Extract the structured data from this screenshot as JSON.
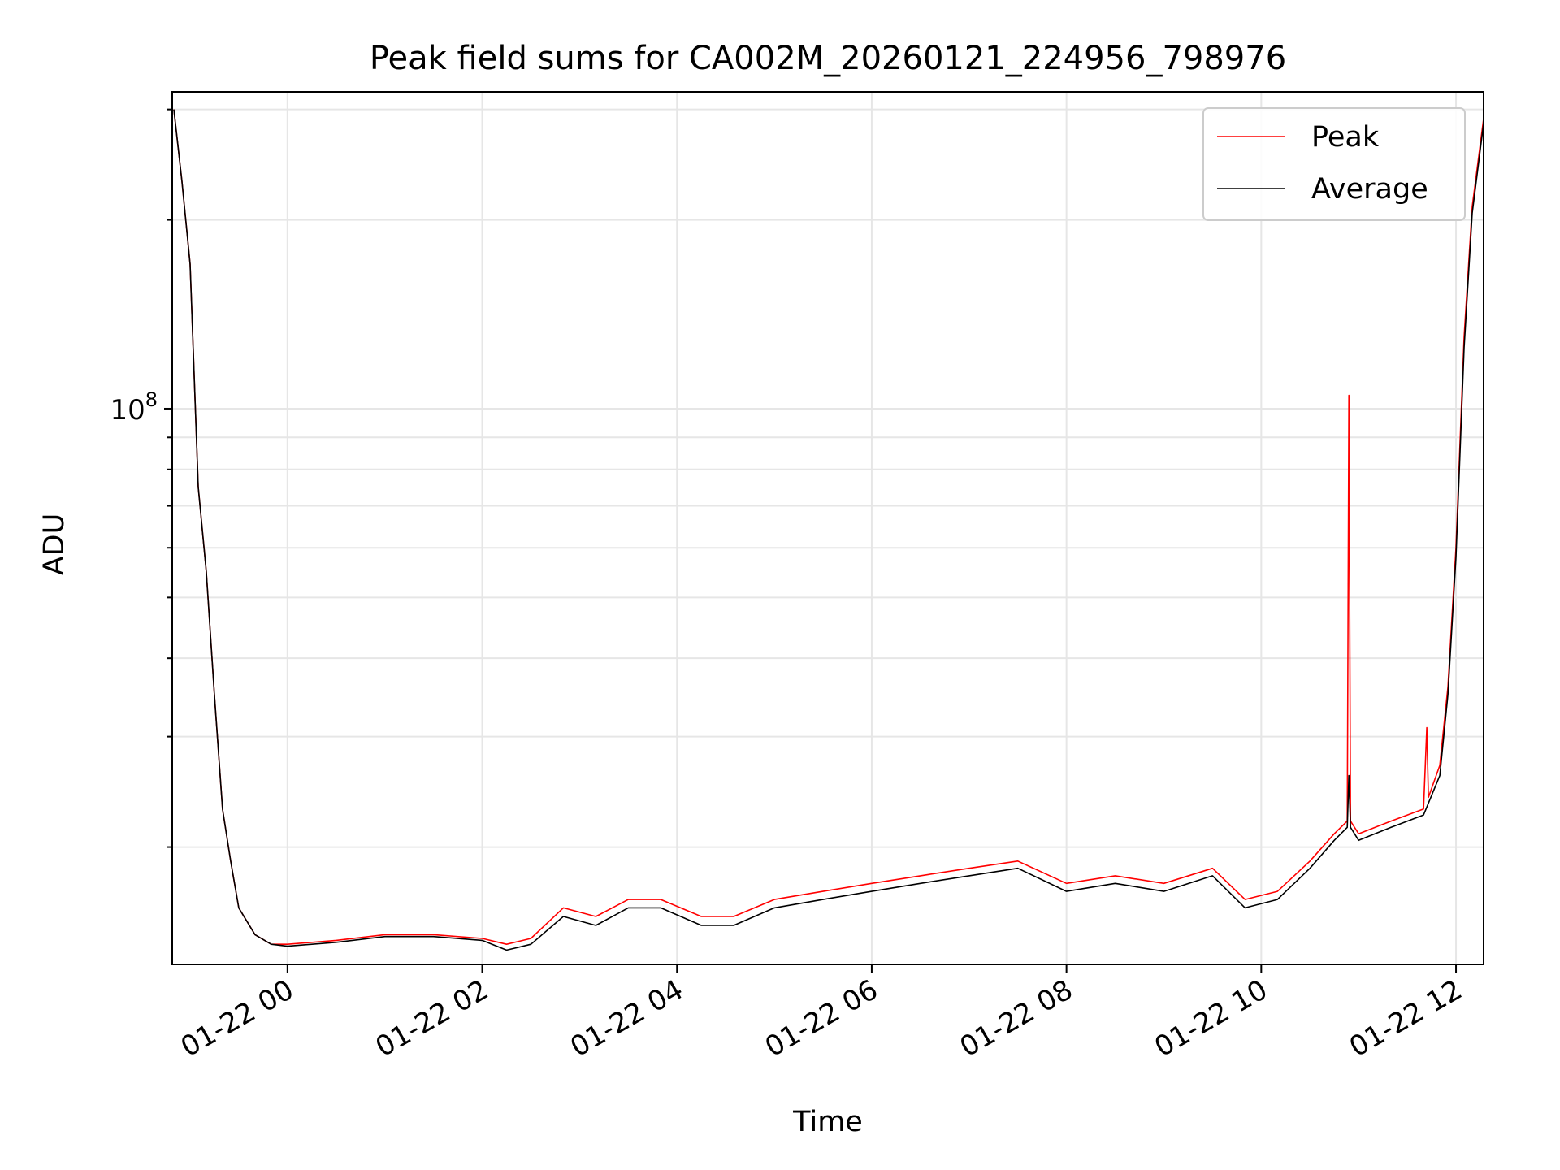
{
  "chart_data": {
    "type": "line",
    "title": "Peak field sums for CA002M_20260121_224956_798976",
    "xlabel": "Time",
    "ylabel": "ADU",
    "yscale": "log",
    "xlim": [
      "2026-01-21 22:49",
      "2026-01-22 12:17"
    ],
    "ylim": [
      13000000,
      320000000
    ],
    "x_tick_labels": [
      "01-22 00",
      "01-22 02",
      "01-22 04",
      "01-22 06",
      "01-22 08",
      "01-22 10",
      "01-22 12"
    ],
    "x_ticks": [
      "2026-01-22 00:00",
      "2026-01-22 02:00",
      "2026-01-22 04:00",
      "2026-01-22 06:00",
      "2026-01-22 08:00",
      "2026-01-22 10:00",
      "2026-01-22 12:00"
    ],
    "y_major_tick_label": "10^8",
    "y_major_tick": 100000000,
    "y_minor_ticks": [
      20000000,
      30000000,
      40000000,
      50000000,
      60000000,
      70000000,
      80000000,
      90000000,
      200000000,
      300000000
    ],
    "grid": true,
    "legend_position": "top-right",
    "series": [
      {
        "name": "Peak",
        "color": "#ff0000",
        "x": [
          "2026-01-21 22:50",
          "2026-01-21 22:55",
          "2026-01-21 23:00",
          "2026-01-21 23:05",
          "2026-01-21 23:10",
          "2026-01-21 23:15",
          "2026-01-21 23:20",
          "2026-01-21 23:25",
          "2026-01-21 23:30",
          "2026-01-21 23:40",
          "2026-01-21 23:50",
          "2026-01-22 00:00",
          "2026-01-22 00:30",
          "2026-01-22 01:00",
          "2026-01-22 01:30",
          "2026-01-22 02:00",
          "2026-01-22 02:15",
          "2026-01-22 02:30",
          "2026-01-22 02:50",
          "2026-01-22 03:10",
          "2026-01-22 03:30",
          "2026-01-22 03:50",
          "2026-01-22 04:15",
          "2026-01-22 04:35",
          "2026-01-22 05:00",
          "2026-01-22 05:30",
          "2026-01-22 06:00",
          "2026-01-22 06:30",
          "2026-01-22 07:00",
          "2026-01-22 07:30",
          "2026-01-22 08:00",
          "2026-01-22 08:30",
          "2026-01-22 09:00",
          "2026-01-22 09:30",
          "2026-01-22 09:50",
          "2026-01-22 10:10",
          "2026-01-22 10:30",
          "2026-01-22 10:45",
          "2026-01-22 10:53",
          "2026-01-22 10:54",
          "2026-01-22 10:55",
          "2026-01-22 11:00",
          "2026-01-22 11:20",
          "2026-01-22 11:40",
          "2026-01-22 11:42",
          "2026-01-22 11:43",
          "2026-01-22 11:50",
          "2026-01-22 11:55",
          "2026-01-22 12:00",
          "2026-01-22 12:05",
          "2026-01-22 12:10",
          "2026-01-22 12:17"
        ],
        "y": [
          300000000,
          230000000,
          170000000,
          75000000,
          55000000,
          35000000,
          23000000,
          19000000,
          16000000,
          14500000,
          14000000,
          14000000,
          14200000,
          14500000,
          14500000,
          14300000,
          14000000,
          14300000,
          16000000,
          15500000,
          16500000,
          16500000,
          15500000,
          15500000,
          16500000,
          17000000,
          17500000,
          18000000,
          18500000,
          19000000,
          17500000,
          18000000,
          17500000,
          18500000,
          16500000,
          17000000,
          19000000,
          21000000,
          22000000,
          105000000,
          22000000,
          21000000,
          22000000,
          23000000,
          31000000,
          24000000,
          27000000,
          36000000,
          60000000,
          130000000,
          210000000,
          290000000
        ]
      },
      {
        "name": "Average",
        "color": "#000000",
        "x": [
          "2026-01-21 22:50",
          "2026-01-21 22:55",
          "2026-01-21 23:00",
          "2026-01-21 23:05",
          "2026-01-21 23:10",
          "2026-01-21 23:15",
          "2026-01-21 23:20",
          "2026-01-21 23:25",
          "2026-01-21 23:30",
          "2026-01-21 23:40",
          "2026-01-21 23:50",
          "2026-01-22 00:00",
          "2026-01-22 00:30",
          "2026-01-22 01:00",
          "2026-01-22 01:30",
          "2026-01-22 02:00",
          "2026-01-22 02:15",
          "2026-01-22 02:30",
          "2026-01-22 02:50",
          "2026-01-22 03:10",
          "2026-01-22 03:30",
          "2026-01-22 03:50",
          "2026-01-22 04:15",
          "2026-01-22 04:35",
          "2026-01-22 05:00",
          "2026-01-22 05:30",
          "2026-01-22 06:00",
          "2026-01-22 06:30",
          "2026-01-22 07:00",
          "2026-01-22 07:30",
          "2026-01-22 08:00",
          "2026-01-22 08:30",
          "2026-01-22 09:00",
          "2026-01-22 09:30",
          "2026-01-22 09:50",
          "2026-01-22 10:10",
          "2026-01-22 10:30",
          "2026-01-22 10:45",
          "2026-01-22 10:53",
          "2026-01-22 10:54",
          "2026-01-22 10:55",
          "2026-01-22 11:00",
          "2026-01-22 11:20",
          "2026-01-22 11:40",
          "2026-01-22 11:50",
          "2026-01-22 11:55",
          "2026-01-22 12:00",
          "2026-01-22 12:05",
          "2026-01-22 12:10",
          "2026-01-22 12:17"
        ],
        "y": [
          300000000,
          230000000,
          170000000,
          75000000,
          55000000,
          35000000,
          23000000,
          19000000,
          16000000,
          14500000,
          14000000,
          13900000,
          14100000,
          14400000,
          14400000,
          14200000,
          13700000,
          14000000,
          15500000,
          15000000,
          16000000,
          16000000,
          15000000,
          15000000,
          16000000,
          16500000,
          17000000,
          17500000,
          18000000,
          18500000,
          17000000,
          17500000,
          17000000,
          18000000,
          16000000,
          16500000,
          18500000,
          20500000,
          21500000,
          26000000,
          21500000,
          20500000,
          21500000,
          22500000,
          26000000,
          35000000,
          58000000,
          125000000,
          205000000,
          285000000
        ]
      }
    ]
  }
}
